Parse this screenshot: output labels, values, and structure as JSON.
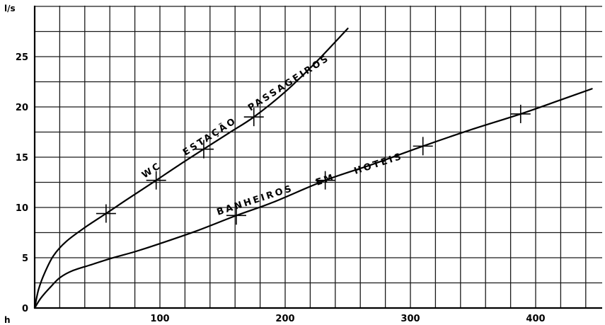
{
  "chart_data": {
    "type": "line",
    "ylabel": "l/s",
    "xlabel": "h",
    "xlim": [
      0,
      445
    ],
    "ylim": [
      0,
      30
    ],
    "grid": true,
    "x_ticks": [
      {
        "value": 100,
        "label": "100"
      },
      {
        "value": 200,
        "label": "200"
      },
      {
        "value": 300,
        "label": "300"
      },
      {
        "value": 400,
        "label": "400"
      }
    ],
    "y_ticks": [
      {
        "value": 0,
        "label": "0"
      },
      {
        "value": 5,
        "label": "5"
      },
      {
        "value": 10,
        "label": "10"
      },
      {
        "value": 15,
        "label": "15"
      },
      {
        "value": 20,
        "label": "20"
      },
      {
        "value": 25,
        "label": "25"
      }
    ],
    "series": [
      {
        "labels": [
          "WC",
          "ESTAÇÃO",
          "PASSAGEIROS"
        ],
        "x": [
          0,
          3,
          8,
          15,
          25,
          40,
          57,
          75,
          97,
          115,
          135,
          155,
          175,
          200,
          225,
          250
        ],
        "y": [
          0,
          1.8,
          3.5,
          5.2,
          6.6,
          8.0,
          9.4,
          10.9,
          12.7,
          14.2,
          15.8,
          17.4,
          19.0,
          21.5,
          24.5,
          27.8
        ],
        "markers_x": [
          57,
          97,
          135,
          175
        ],
        "markers_y": [
          9.4,
          12.7,
          15.8,
          19.0
        ]
      },
      {
        "labels": [
          "BANHEIROS",
          "EM",
          "HOTEIS"
        ],
        "x": [
          0,
          5,
          12,
          20,
          30,
          45,
          60,
          80,
          100,
          130,
          161,
          190,
          232,
          270,
          310,
          350,
          388,
          420,
          445
        ],
        "y": [
          0,
          1.0,
          2.0,
          3.0,
          3.7,
          4.3,
          4.9,
          5.6,
          6.4,
          7.7,
          9.2,
          10.5,
          12.7,
          14.3,
          16.1,
          17.8,
          19.3,
          20.7,
          21.8
        ],
        "markers_x": [
          161,
          232,
          310,
          388
        ],
        "markers_y": [
          9.2,
          12.7,
          16.1,
          19.3
        ]
      }
    ]
  }
}
